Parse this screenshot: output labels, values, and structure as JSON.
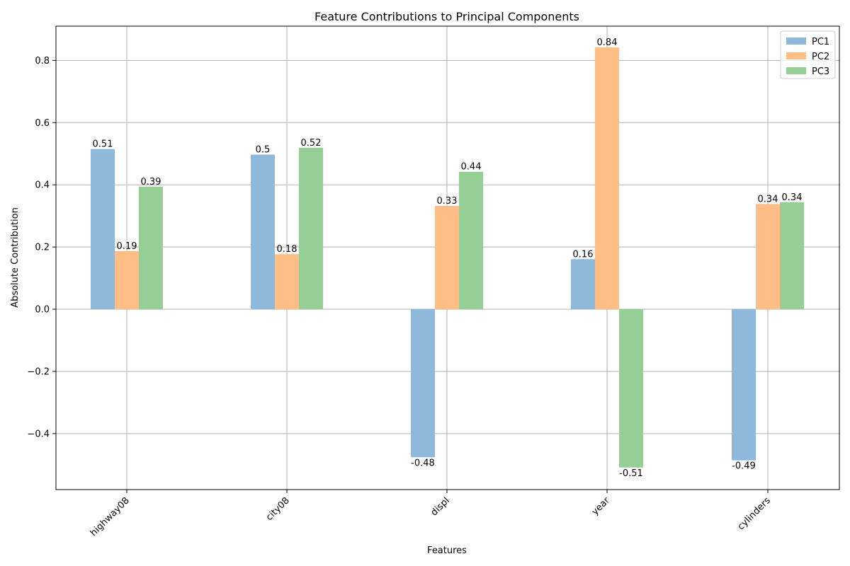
{
  "chart_data": {
    "type": "bar",
    "title": "Feature Contributions to Principal Components",
    "xlabel": "Features",
    "ylabel": "Absolute Contribution",
    "categories": [
      "highway08",
      "city08",
      "displ",
      "year",
      "cylinders"
    ],
    "series": [
      {
        "name": "PC1",
        "color": "#8fb9da",
        "values": [
          0.515,
          0.497,
          -0.476,
          0.161,
          -0.486
        ]
      },
      {
        "name": "PC2",
        "color": "#ffbe86",
        "values": [
          0.187,
          0.177,
          0.332,
          0.842,
          0.338
        ]
      },
      {
        "name": "PC3",
        "color": "#95cf95",
        "values": [
          0.394,
          0.519,
          0.442,
          -0.509,
          0.344
        ]
      }
    ],
    "data_labels": [
      [
        "0.51",
        "0.5",
        "-0.48",
        "0.16",
        "-0.49"
      ],
      [
        "0.19",
        "0.18",
        "0.33",
        "0.84",
        "0.34"
      ],
      [
        "0.39",
        "0.52",
        "0.44",
        "-0.51",
        "0.34"
      ]
    ],
    "ylim": [
      -0.58,
      0.91
    ],
    "yticks": [
      -0.4,
      -0.2,
      0.0,
      0.2,
      0.4,
      0.6,
      0.8
    ],
    "ytick_labels": [
      "−0.4",
      "−0.2",
      "0.0",
      "0.2",
      "0.4",
      "0.6",
      "0.8"
    ],
    "grid": true,
    "legend_position": "top-right",
    "xtick_rotation": 45
  }
}
